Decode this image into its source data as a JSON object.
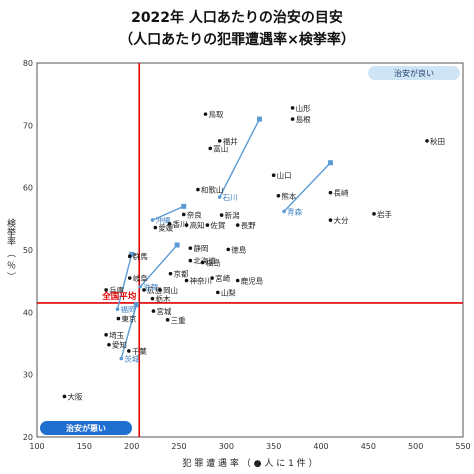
{
  "title_line1": "2022年 人口あたりの治安の目安",
  "title_line2": "（人口あたりの犯罪遭遇率×検挙率）",
  "badges": {
    "good": "治安が良い",
    "bad": "治安が悪い"
  },
  "average_label": "全国平均",
  "colors": {
    "average_line": "#e00000",
    "point": "#111111",
    "arrow": "#5b9bd5",
    "badge_good": "#cfe4f5",
    "badge_bad": "#1f6fd1",
    "frame": "#555555"
  },
  "chart_data": {
    "type": "scatter",
    "xlabel": "犯 罪 遭 遇 率 （ ● 人 に 1 件 ）",
    "ylabel": "検挙率 （ ％ ）",
    "xlim": [
      100,
      550
    ],
    "ylim": [
      20,
      80
    ],
    "xticks": [
      100,
      150,
      200,
      250,
      300,
      350,
      400,
      450,
      500,
      550
    ],
    "yticks": [
      20,
      30,
      40,
      50,
      60,
      70,
      80
    ],
    "grid": false,
    "average": {
      "x": 208,
      "y": 41.5
    },
    "points": [
      {
        "name": "山形",
        "x": 370,
        "y": 72.8
      },
      {
        "name": "島根",
        "x": 370,
        "y": 71.0
      },
      {
        "name": "鳥取",
        "x": 278,
        "y": 71.8
      },
      {
        "name": "福井",
        "x": 293,
        "y": 67.5
      },
      {
        "name": "富山",
        "x": 283,
        "y": 66.3
      },
      {
        "name": "秋田",
        "x": 512,
        "y": 67.5
      },
      {
        "name": "山口",
        "x": 350,
        "y": 62.0
      },
      {
        "name": "長崎",
        "x": 410,
        "y": 59.2
      },
      {
        "name": "熊本",
        "x": 355,
        "y": 58.7
      },
      {
        "name": "和歌山",
        "x": 270,
        "y": 59.7
      },
      {
        "name": "岩手",
        "x": 456,
        "y": 55.8
      },
      {
        "name": "大分",
        "x": 410,
        "y": 54.8
      },
      {
        "name": "新潟",
        "x": 295,
        "y": 55.6
      },
      {
        "name": "奈良",
        "x": 255,
        "y": 55.7
      },
      {
        "name": "佐賀",
        "x": 280,
        "y": 54.0
      },
      {
        "name": "長野",
        "x": 312,
        "y": 54.0
      },
      {
        "name": "香川",
        "x": 240,
        "y": 54.2
      },
      {
        "name": "高知",
        "x": 258,
        "y": 54.0
      },
      {
        "name": "愛媛",
        "x": 225,
        "y": 53.6
      },
      {
        "name": "静岡",
        "x": 262,
        "y": 50.3
      },
      {
        "name": "徳島",
        "x": 302,
        "y": 50.1
      },
      {
        "name": "群馬",
        "x": 198,
        "y": 49.0
      },
      {
        "name": "北海道",
        "x": 262,
        "y": 48.3
      },
      {
        "name": "福島",
        "x": 275,
        "y": 48.0
      },
      {
        "name": "京都",
        "x": 241,
        "y": 46.2
      },
      {
        "name": "岐阜",
        "x": 198,
        "y": 45.5
      },
      {
        "name": "宮崎",
        "x": 285,
        "y": 45.5
      },
      {
        "name": "神奈川",
        "x": 258,
        "y": 45.1
      },
      {
        "name": "鹿児島",
        "x": 312,
        "y": 45.1
      },
      {
        "name": "兵庫",
        "x": 173,
        "y": 43.6
      },
      {
        "name": "広島",
        "x": 213,
        "y": 43.6
      },
      {
        "name": "岡山",
        "x": 230,
        "y": 43.6
      },
      {
        "name": "山梨",
        "x": 291,
        "y": 43.2
      },
      {
        "name": "栃木",
        "x": 222,
        "y": 42.2
      },
      {
        "name": "宮城",
        "x": 223,
        "y": 40.2
      },
      {
        "name": "東京",
        "x": 186,
        "y": 39.0
      },
      {
        "name": "三重",
        "x": 238,
        "y": 38.8
      },
      {
        "name": "埼玉",
        "x": 173,
        "y": 36.4
      },
      {
        "name": "愛知",
        "x": 176,
        "y": 34.8
      },
      {
        "name": "千葉",
        "x": 197,
        "y": 33.8
      },
      {
        "name": "大阪",
        "x": 129,
        "y": 26.5
      }
    ],
    "highlights": [
      {
        "name": "石川",
        "from": [
          335,
          71.0
        ],
        "to": [
          293,
          58.5
        ]
      },
      {
        "name": "青森",
        "from": [
          410,
          64.0
        ],
        "to": [
          361,
          56.2
        ]
      },
      {
        "name": "沖縄",
        "from": [
          255,
          57.0
        ],
        "to": [
          222,
          54.8
        ]
      },
      {
        "name": "滋賀",
        "from": [
          248,
          50.8
        ],
        "to": [
          209,
          44.1
        ]
      },
      {
        "name": "福岡",
        "from": [
          200,
          49.3
        ],
        "to": [
          185,
          40.5
        ]
      },
      {
        "name": "茨城",
        "from": [
          205,
          41.2
        ],
        "to": [
          189,
          32.6
        ]
      }
    ]
  }
}
